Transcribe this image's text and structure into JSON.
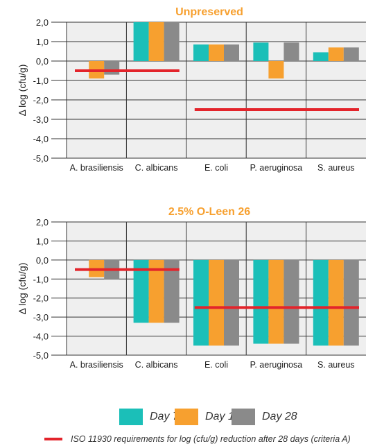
{
  "colors": {
    "day7": "#1bbfb8",
    "day14": "#f7a02f",
    "day28": "#8a8a8a",
    "iso": "#e3242b",
    "title": "#f7a02f",
    "panel": "#efefef",
    "grid": "#333333"
  },
  "legend": {
    "day7": "Day 7",
    "day14": "Day 14",
    "day28": "Day 28",
    "iso_note": "ISO 11930 requirements for log (cfu/g) reduction after 28 days (criteria A)"
  },
  "chart_data": [
    {
      "type": "bar",
      "title": "Unpreserved",
      "ylabel": "Δ log (cfu/g)",
      "ylim": [
        -5,
        2
      ],
      "ytick_labels": [
        "2,0",
        "1,0",
        "0,0",
        "-1,0",
        "-2,0",
        "-3,0",
        "-4,0",
        "-5,0"
      ],
      "categories": [
        "A. brasiliensis",
        "C. albicans",
        "E. coli",
        "P. aeruginosa",
        "S. aureus"
      ],
      "series": [
        {
          "name": "Day 7",
          "values": [
            0.0,
            2.1,
            0.85,
            0.95,
            0.45
          ]
        },
        {
          "name": "Day 14",
          "values": [
            -0.9,
            2.1,
            0.85,
            -0.9,
            0.7
          ]
        },
        {
          "name": "Day 28",
          "values": [
            -0.7,
            2.1,
            0.85,
            0.95,
            0.7
          ]
        }
      ],
      "iso_requirements": [
        {
          "categories": [
            "A. brasiliensis",
            "C. albicans"
          ],
          "value": -0.5
        },
        {
          "categories": [
            "E. coli",
            "P. aeruginosa",
            "S. aureus"
          ],
          "value": -2.5
        }
      ]
    },
    {
      "type": "bar",
      "title": "2.5% O-Leen 26",
      "ylabel": "Δ log (cfu/g)",
      "ylim": [
        -5,
        2
      ],
      "ytick_labels": [
        "2,0",
        "1,0",
        "0,0",
        "-1,0",
        "-2,0",
        "-3,0",
        "-4,0",
        "-5,0"
      ],
      "categories": [
        "A. brasiliensis",
        "C. albicans",
        "E. coli",
        "P. aeruginosa",
        "S. aureus"
      ],
      "series": [
        {
          "name": "Day 7",
          "values": [
            0.0,
            -3.3,
            -4.5,
            -4.4,
            -4.5
          ]
        },
        {
          "name": "Day 14",
          "values": [
            -0.9,
            -3.3,
            -4.5,
            -4.4,
            -4.5
          ]
        },
        {
          "name": "Day 28",
          "values": [
            -1.0,
            -3.3,
            -4.5,
            -4.4,
            -4.5
          ]
        }
      ],
      "iso_requirements": [
        {
          "categories": [
            "A. brasiliensis",
            "C. albicans"
          ],
          "value": -0.5
        },
        {
          "categories": [
            "E. coli",
            "P. aeruginosa",
            "S. aureus"
          ],
          "value": -2.5
        }
      ]
    }
  ]
}
